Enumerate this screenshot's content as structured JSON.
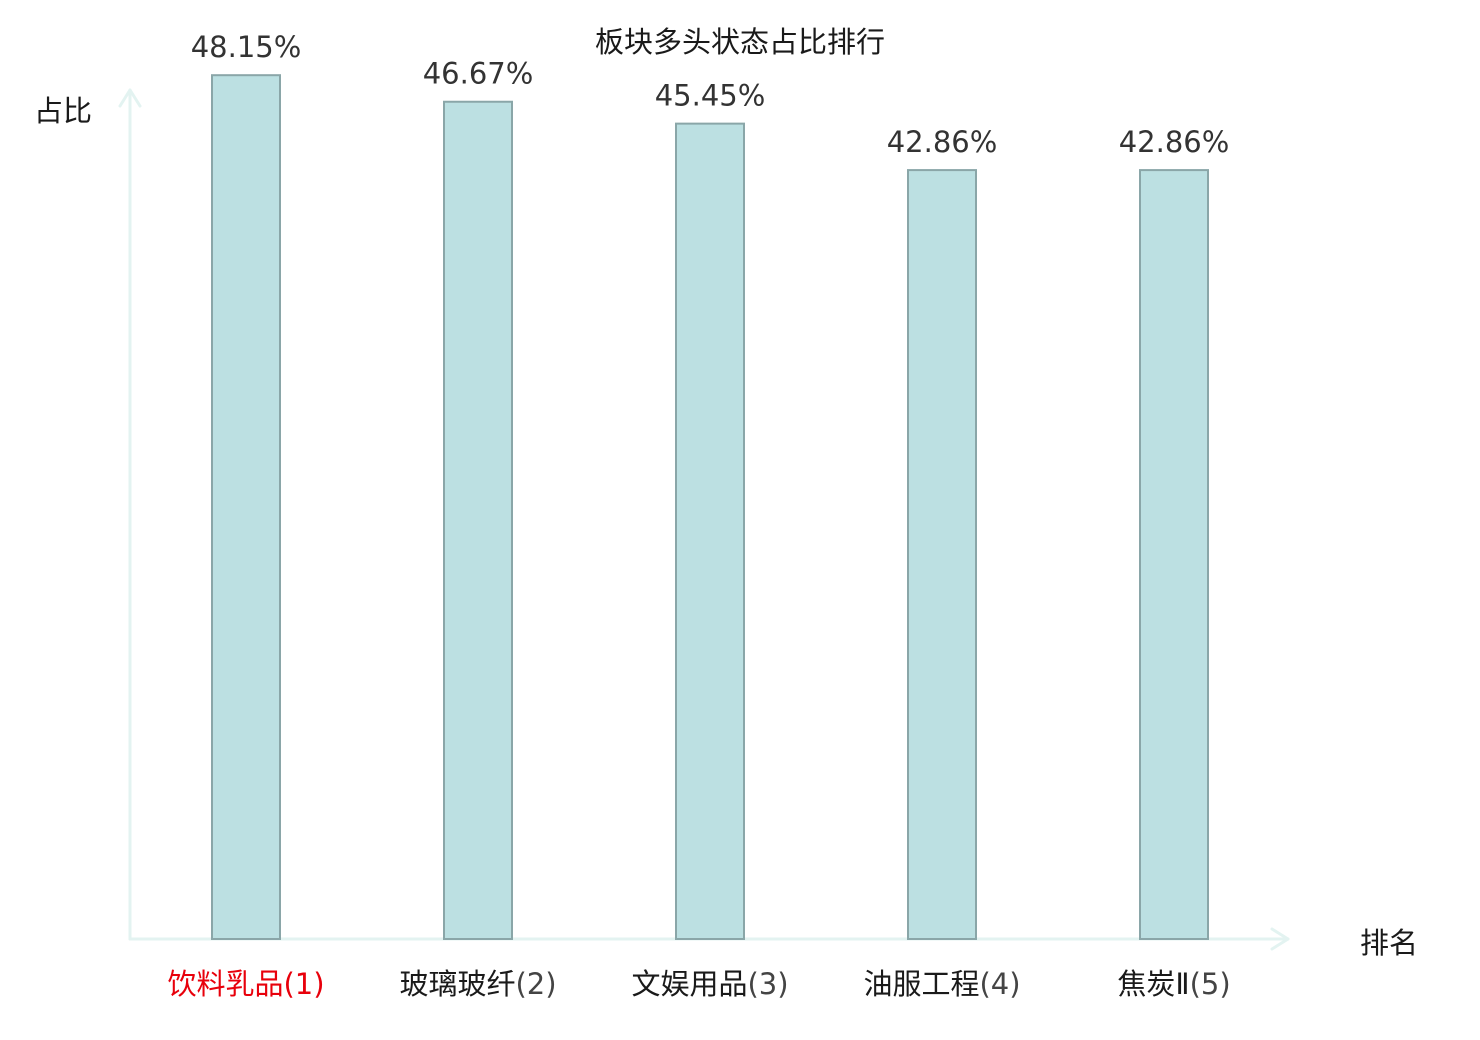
{
  "chart_data": {
    "type": "bar",
    "title": "板块多头状态占比排行",
    "ylabel": "占比",
    "xlabel": "排名",
    "categories": [
      {
        "name": "饮料乳品",
        "rank": "(1)",
        "highlight": true
      },
      {
        "name": "玻璃玻纤",
        "rank": "(2)",
        "highlight": false
      },
      {
        "name": "文娱用品",
        "rank": "(3)",
        "highlight": false
      },
      {
        "name": "油服工程",
        "rank": "(4)",
        "highlight": false
      },
      {
        "name": "焦炭Ⅱ",
        "rank": "(5)",
        "highlight": false
      }
    ],
    "values": [
      48.15,
      46.67,
      45.45,
      42.86,
      42.86
    ],
    "value_labels": [
      "48.15%",
      "46.67%",
      "45.45%",
      "42.86%",
      "42.86%"
    ],
    "ylim": [
      0,
      50
    ],
    "grid": false,
    "colors": {
      "bar_fill": "#bce0e2",
      "bar_stroke": "#8aa6a8",
      "axis": "#e3f3f1",
      "highlight_label": "#e8000b",
      "normal_label": "#1a1a1a",
      "rank_normal": "#444444"
    }
  }
}
